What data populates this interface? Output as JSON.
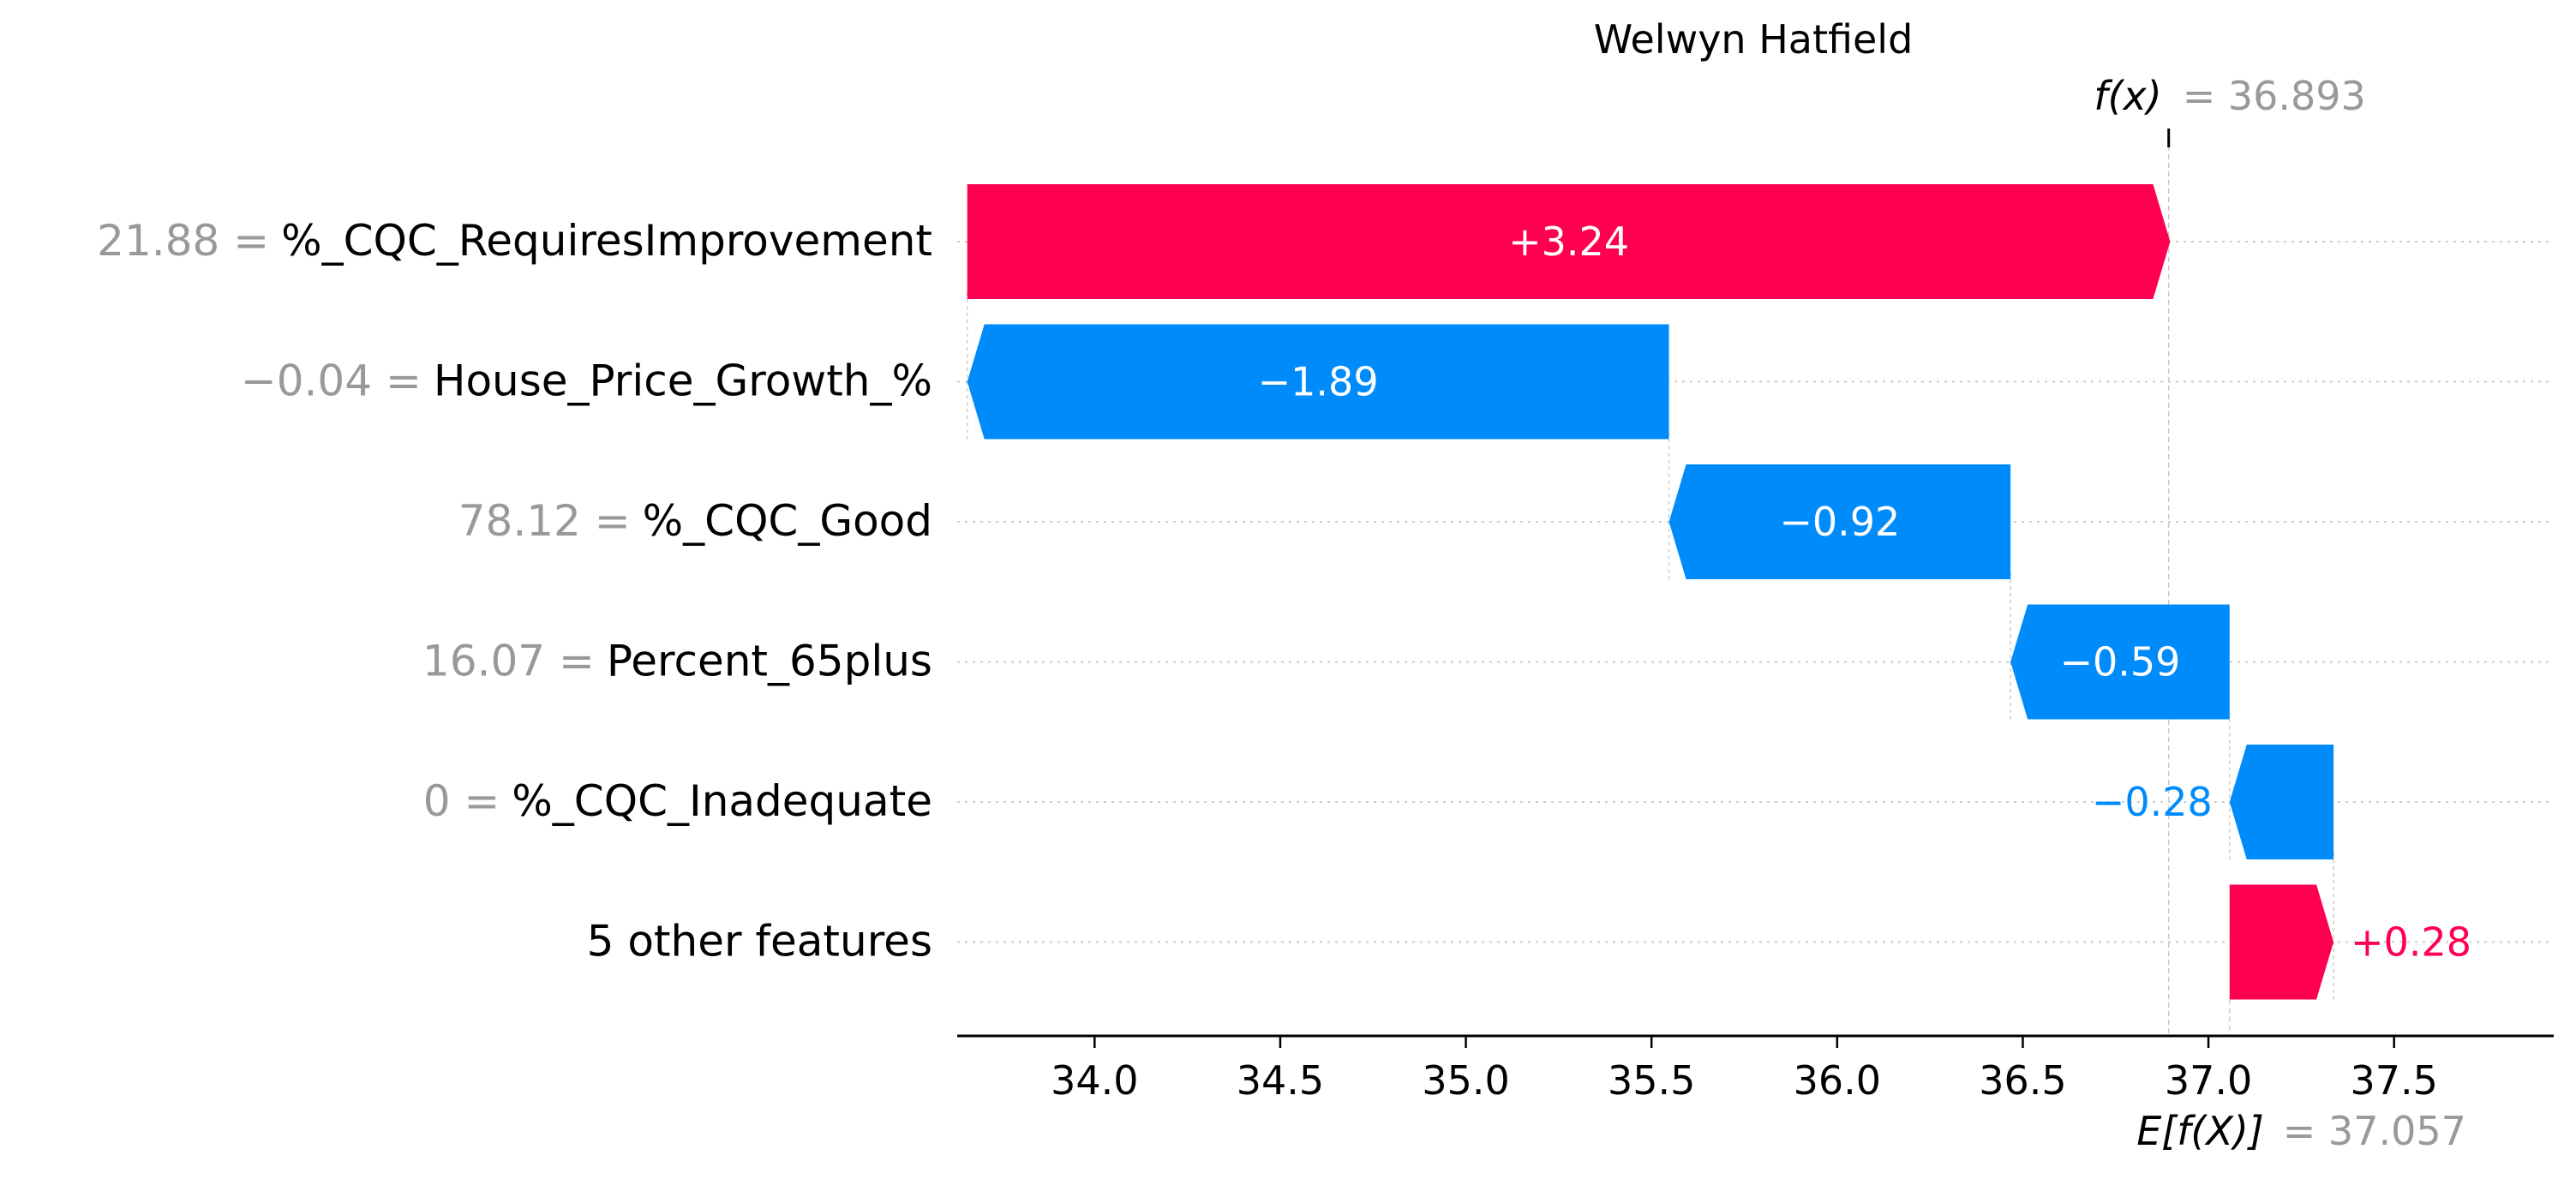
{
  "chart_data": {
    "type": "waterfall",
    "title": "Welwyn Hatfield",
    "fx_label": "f(x)",
    "fx_value": "= 36.893",
    "fx": 36.893,
    "base_label": "E[f(X)]",
    "base_value_text": "= 37.057",
    "base_value": 37.057,
    "xlim": [
      33.63,
      37.93
    ],
    "xticks": [
      34.0,
      34.5,
      35.0,
      35.5,
      36.0,
      36.5,
      37.0,
      37.5
    ],
    "xtick_labels": [
      "34.0",
      "34.5",
      "35.0",
      "35.5",
      "36.0",
      "36.5",
      "37.0",
      "37.5"
    ],
    "features": [
      {
        "value": "21.88 =",
        "name": "%_CQC_RequiresImprovement",
        "contribution": 3.24,
        "label": "+3.24"
      },
      {
        "value": "−0.04 =",
        "name": "House_Price_Growth_%",
        "contribution": -1.89,
        "label": "−1.89"
      },
      {
        "value": "78.12 =",
        "name": "%_CQC_Good",
        "contribution": -0.92,
        "label": "−0.92"
      },
      {
        "value": "16.07 =",
        "name": "Percent_65plus",
        "contribution": -0.59,
        "label": "−0.59"
      },
      {
        "value": "0 =",
        "name": "%_CQC_Inadequate",
        "contribution": -0.28,
        "label": "−0.28"
      },
      {
        "value": "",
        "name": "5 other features",
        "contribution": 0.28,
        "label": "+0.28"
      }
    ],
    "colors": {
      "positive": "#ff0051",
      "negative": "#008bfb",
      "value_text": "#999999",
      "axis": "#000000",
      "grid": "#cccccc"
    }
  }
}
